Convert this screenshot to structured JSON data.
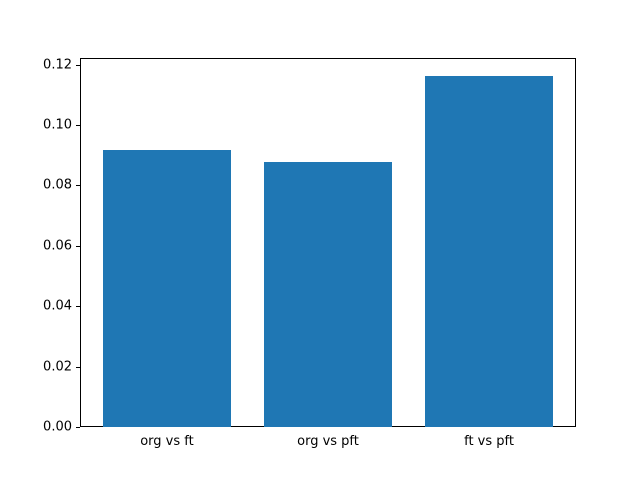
{
  "figure": {
    "background": "#ffffff",
    "spine_color": "#000000"
  },
  "chart_data": {
    "type": "bar",
    "title": "",
    "xlabel": "",
    "ylabel": "",
    "categories": [
      "org vs ft",
      "org vs pft",
      "ft vs pft"
    ],
    "values": [
      0.0917,
      0.0879,
      0.1164
    ],
    "bar_color": "#1f77b4",
    "bar_width": 0.8,
    "xlim": [
      -0.54,
      2.54
    ],
    "ylim": [
      0,
      0.1222
    ],
    "yticks": [
      0.0,
      0.02,
      0.04,
      0.06,
      0.08,
      0.1,
      0.12
    ],
    "ytick_labels": [
      "0.00",
      "0.02",
      "0.04",
      "0.06",
      "0.08",
      "0.10",
      "0.12"
    ],
    "grid": false,
    "legend": null
  }
}
